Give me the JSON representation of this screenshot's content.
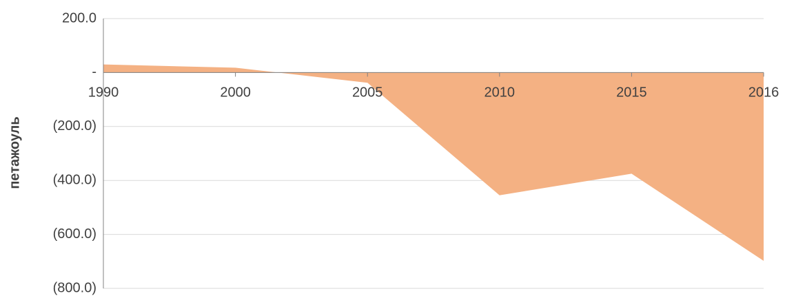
{
  "chart_data": {
    "type": "area",
    "y_axis_label": "петажоуль",
    "categories": [
      "1990",
      "2000",
      "2005",
      "2010",
      "2015",
      "2016"
    ],
    "values": [
      30,
      18,
      -38,
      -455,
      -375,
      -698
    ],
    "color": "#f4b183",
    "ylim": [
      -800,
      200
    ],
    "yticks": [
      {
        "value": 200,
        "label": "200.0"
      },
      {
        "value": 0,
        "label": "-"
      },
      {
        "value": -200,
        "label": "(200.0)"
      },
      {
        "value": -400,
        "label": "(400.0)"
      },
      {
        "value": -600,
        "label": "(600.0)"
      },
      {
        "value": -800,
        "label": "(800.0)"
      }
    ],
    "grid": true
  }
}
